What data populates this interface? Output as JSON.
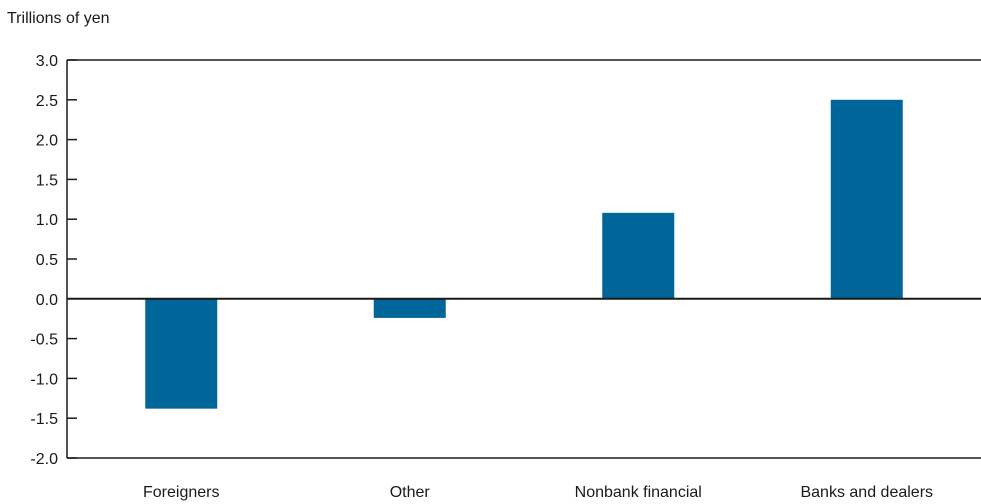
{
  "chart_data": {
    "type": "bar",
    "ylabel": "Trillions of yen",
    "categories": [
      "Foreigners",
      "Other",
      "Nonbank financial",
      "Banks and dealers"
    ],
    "values": [
      -1.38,
      -0.24,
      1.08,
      2.5
    ],
    "ylim": [
      -2.0,
      3.0
    ],
    "yticks": [
      "3.0",
      "2.5",
      "2.0",
      "1.5",
      "1.0",
      "0.5",
      "0.0",
      "-0.5",
      "-1.0",
      "-1.5",
      "-2.0"
    ],
    "bar_color": "#006699",
    "grid": false,
    "legend": "none"
  }
}
